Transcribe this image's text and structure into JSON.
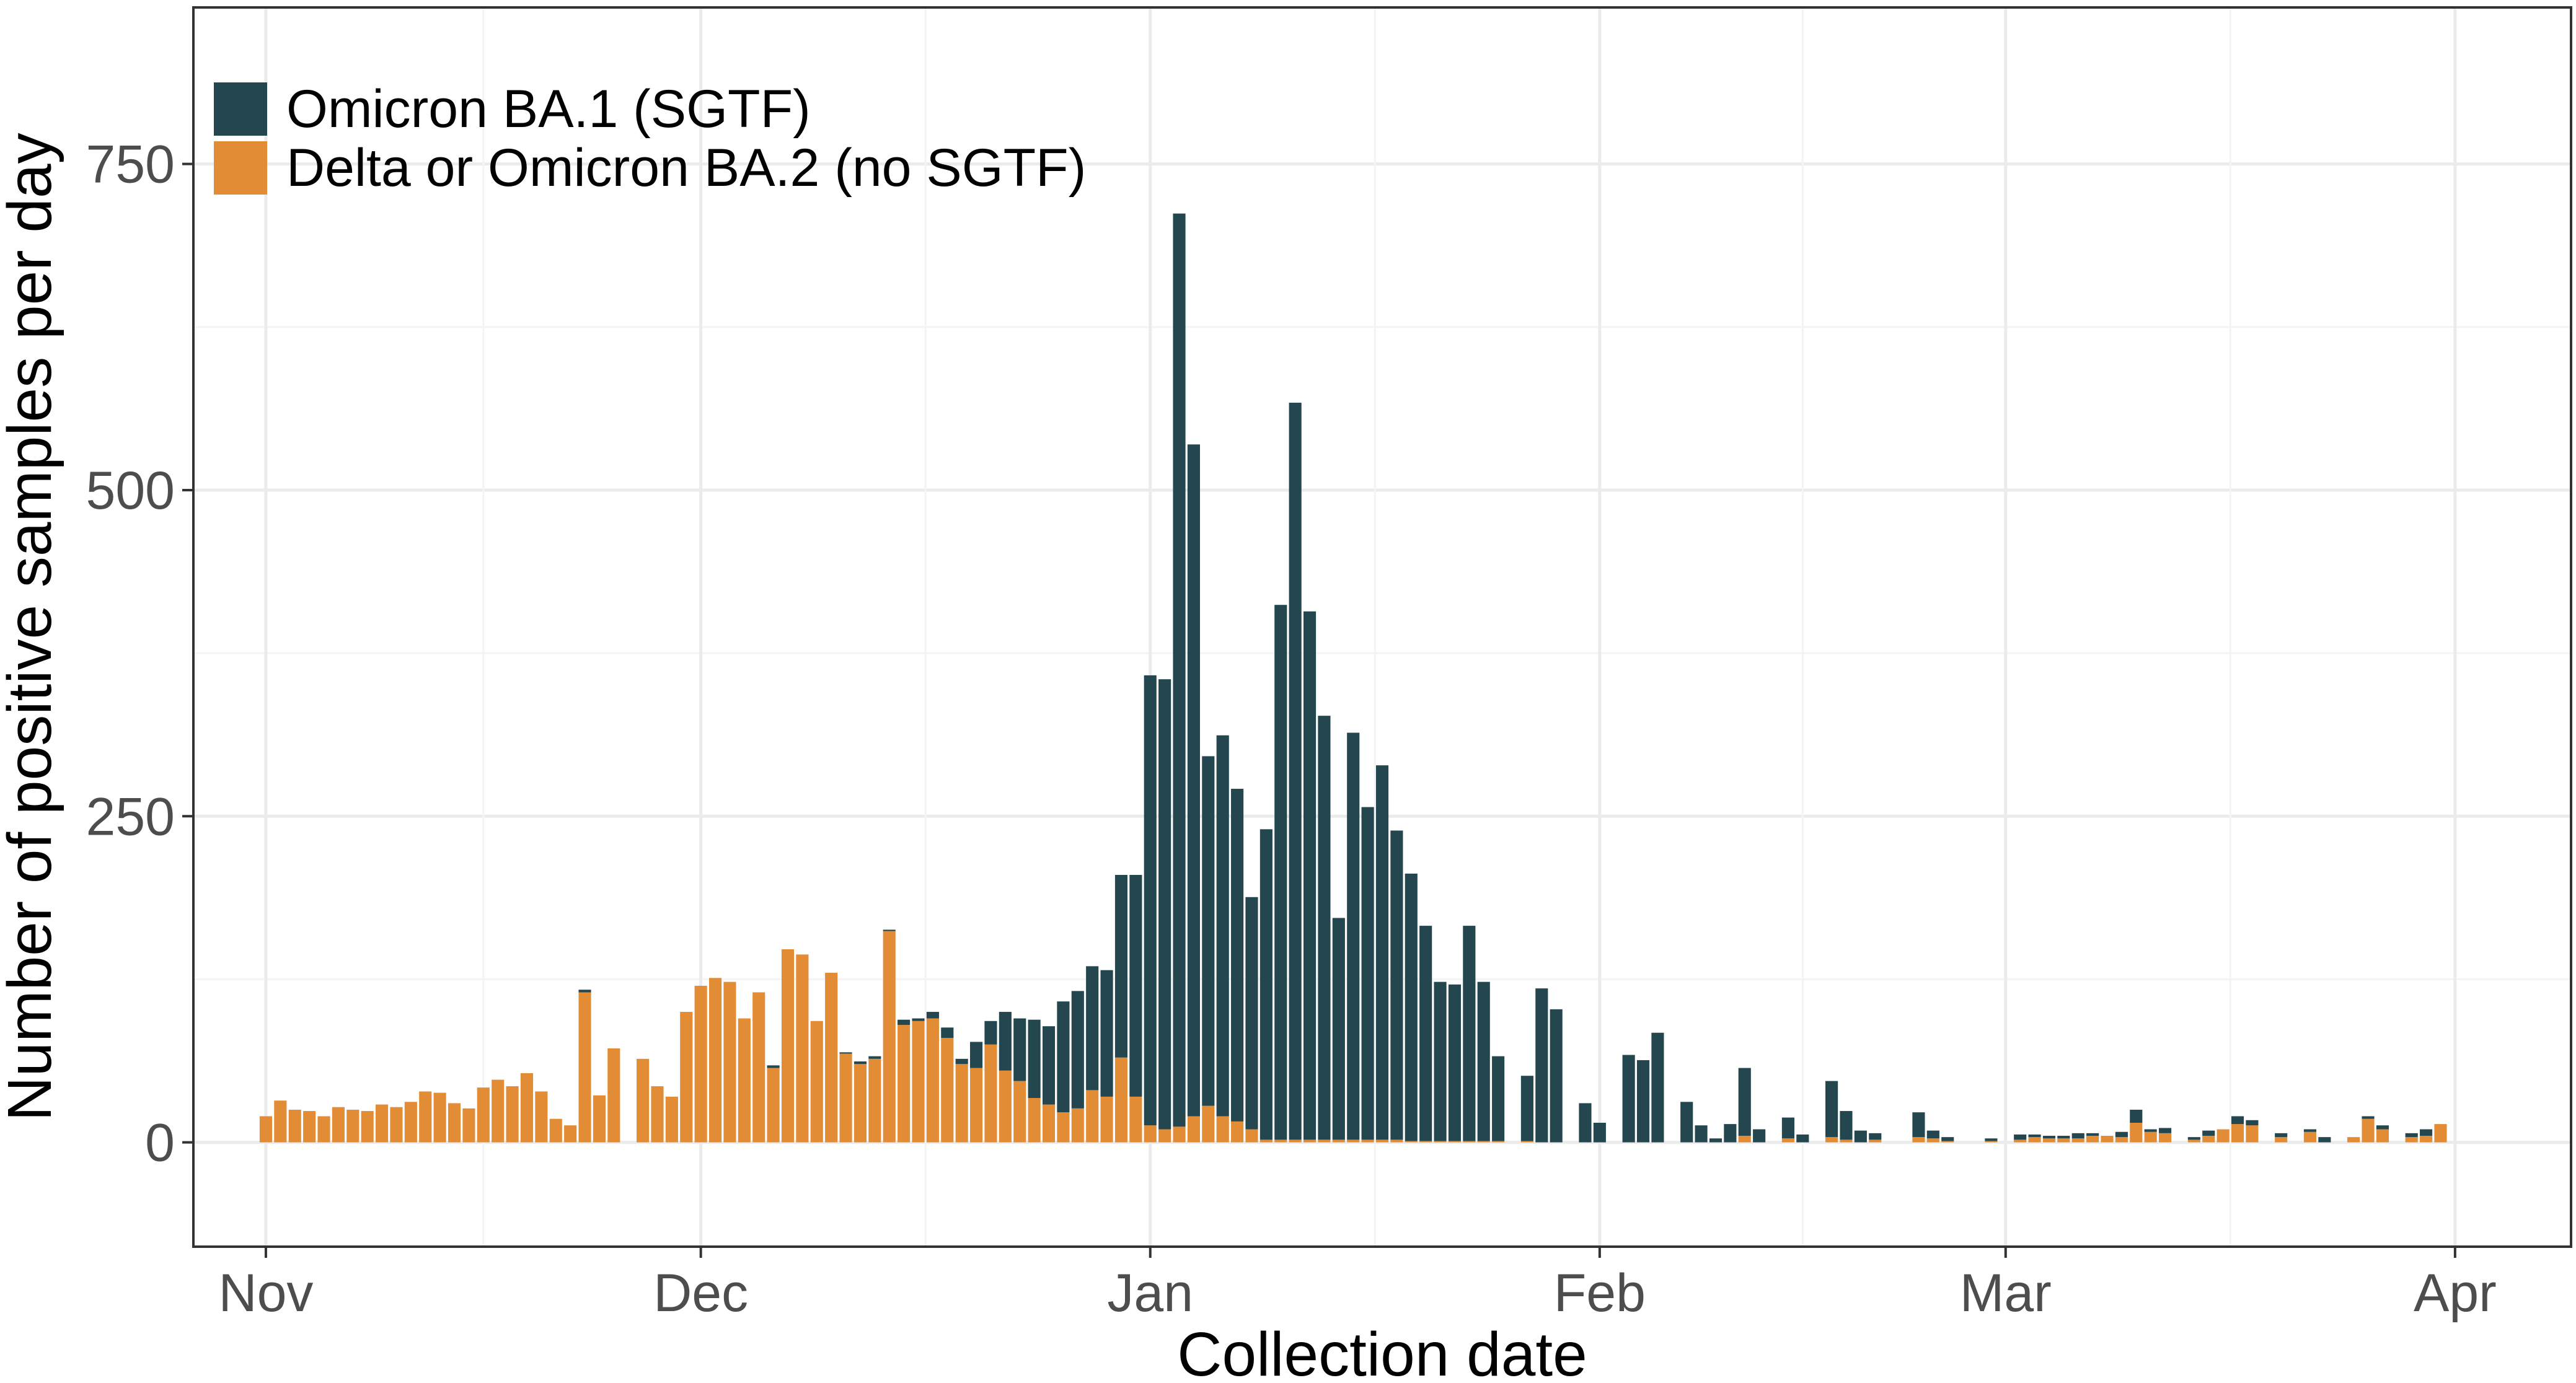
{
  "chart_data": {
    "type": "bar",
    "stacked": true,
    "xlabel": "Collection date",
    "ylabel": "Number of positive samples per day",
    "ylim": [
      -80,
      870
    ],
    "yticks": [
      0,
      250,
      500,
      750
    ],
    "xlim": [
      "2021-10-27",
      "2022-04-09"
    ],
    "xticks": [
      {
        "label": "Nov",
        "date": "2021-11-01"
      },
      {
        "label": "Dec",
        "date": "2021-12-01"
      },
      {
        "label": "Jan",
        "date": "2022-01-01"
      },
      {
        "label": "Feb",
        "date": "2022-02-01"
      },
      {
        "label": "Mar",
        "date": "2022-03-01"
      },
      {
        "label": "Apr",
        "date": "2022-04-01"
      }
    ],
    "grid": true,
    "legend_position": "top-left",
    "series": [
      {
        "name": "Omicron BA.1 (SGTF)",
        "color": "#23464f"
      },
      {
        "name": "Delta or Omicron BA.2 (no SGTF)",
        "color": "#e28c35"
      }
    ],
    "dates": [
      "2021-11-01",
      "2021-11-02",
      "2021-11-03",
      "2021-11-04",
      "2021-11-05",
      "2021-11-06",
      "2021-11-07",
      "2021-11-08",
      "2021-11-09",
      "2021-11-10",
      "2021-11-11",
      "2021-11-12",
      "2021-11-13",
      "2021-11-14",
      "2021-11-15",
      "2021-11-16",
      "2021-11-17",
      "2021-11-18",
      "2021-11-19",
      "2021-11-20",
      "2021-11-21",
      "2021-11-22",
      "2021-11-23",
      "2021-11-24",
      "2021-11-25",
      "2021-11-26",
      "2021-11-27",
      "2021-11-28",
      "2021-11-29",
      "2021-11-30",
      "2021-12-01",
      "2021-12-02",
      "2021-12-03",
      "2021-12-04",
      "2021-12-05",
      "2021-12-06",
      "2021-12-07",
      "2021-12-08",
      "2021-12-09",
      "2021-12-10",
      "2021-12-11",
      "2021-12-12",
      "2021-12-13",
      "2021-12-14",
      "2021-12-15",
      "2021-12-16",
      "2021-12-17",
      "2021-12-18",
      "2021-12-19",
      "2021-12-20",
      "2021-12-21",
      "2021-12-22",
      "2021-12-23",
      "2021-12-24",
      "2021-12-25",
      "2021-12-26",
      "2021-12-27",
      "2021-12-28",
      "2021-12-29",
      "2021-12-30",
      "2021-12-31",
      "2022-01-01",
      "2022-01-02",
      "2022-01-03",
      "2022-01-04",
      "2022-01-05",
      "2022-01-06",
      "2022-01-07",
      "2022-01-08",
      "2022-01-09",
      "2022-01-10",
      "2022-01-11",
      "2022-01-12",
      "2022-01-13",
      "2022-01-14",
      "2022-01-15",
      "2022-01-16",
      "2022-01-17",
      "2022-01-18",
      "2022-01-19",
      "2022-01-20",
      "2022-01-21",
      "2022-01-22",
      "2022-01-23",
      "2022-01-24",
      "2022-01-25",
      "2022-01-26",
      "2022-01-27",
      "2022-01-28",
      "2022-01-29",
      "2022-01-30",
      "2022-01-31",
      "2022-02-01",
      "2022-02-02",
      "2022-02-03",
      "2022-02-04",
      "2022-02-05",
      "2022-02-06",
      "2022-02-07",
      "2022-02-08",
      "2022-02-09",
      "2022-02-10",
      "2022-02-11",
      "2022-02-12",
      "2022-02-13",
      "2022-02-14",
      "2022-02-15",
      "2022-02-16",
      "2022-02-17",
      "2022-02-18",
      "2022-02-19",
      "2022-02-20",
      "2022-02-21",
      "2022-02-22",
      "2022-02-23",
      "2022-02-24",
      "2022-02-25",
      "2022-02-26",
      "2022-02-27",
      "2022-02-28",
      "2022-03-01",
      "2022-03-02",
      "2022-03-03",
      "2022-03-04",
      "2022-03-05",
      "2022-03-06",
      "2022-03-07",
      "2022-03-08",
      "2022-03-09",
      "2022-03-10",
      "2022-03-11",
      "2022-03-12",
      "2022-03-13",
      "2022-03-14",
      "2022-03-15",
      "2022-03-16",
      "2022-03-17",
      "2022-03-18",
      "2022-03-19",
      "2022-03-20",
      "2022-03-21",
      "2022-03-22",
      "2022-03-23",
      "2022-03-24",
      "2022-03-25",
      "2022-03-26",
      "2022-03-27",
      "2022-03-28",
      "2022-03-29",
      "2022-03-30",
      "2022-03-31",
      "2022-04-01",
      "2022-04-02",
      "2022-04-03",
      "2022-04-04"
    ],
    "omicron_ba1": [
      0,
      0,
      0,
      0,
      0,
      0,
      0,
      0,
      0,
      0,
      0,
      0,
      0,
      0,
      0,
      0,
      0,
      0,
      0,
      0,
      0,
      0,
      2,
      0,
      0,
      0,
      0,
      0,
      0,
      0,
      0,
      0,
      0,
      0,
      0,
      2,
      0,
      0,
      0,
      0,
      1,
      2,
      2,
      1,
      4,
      2,
      5,
      8,
      4,
      20,
      18,
      45,
      48,
      60,
      60,
      85,
      90,
      95,
      97,
      140,
      170,
      345,
      345,
      700,
      515,
      268,
      292,
      255,
      178,
      238,
      410,
      565,
      405,
      325,
      170,
      312,
      255,
      287,
      237,
      205,
      165,
      122,
      120,
      165,
      122,
      65,
      0,
      50,
      118,
      102,
      0,
      30,
      15,
      0,
      67,
      63,
      84,
      0,
      31,
      13,
      3,
      14,
      52,
      10,
      0,
      16,
      6,
      0,
      43,
      22,
      9,
      5,
      0,
      0,
      19,
      6,
      3,
      0,
      0,
      2,
      0,
      4,
      2,
      2,
      2,
      4,
      2,
      0,
      4,
      10,
      2,
      4,
      0,
      2,
      4,
      0,
      6,
      4,
      0,
      3,
      0,
      2,
      4,
      0,
      0,
      2,
      3,
      0,
      3,
      5,
      0,
      0,
      0,
      0,
      0,
      0,
      0,
      0,
      0,
      0
    ],
    "delta_or_ba2": [
      20,
      32,
      25,
      24,
      20,
      27,
      25,
      24,
      29,
      27,
      31,
      39,
      38,
      30,
      26,
      42,
      48,
      43,
      53,
      39,
      18,
      13,
      115,
      36,
      72,
      0,
      64,
      43,
      35,
      100,
      120,
      126,
      123,
      95,
      115,
      57,
      148,
      144,
      93,
      130,
      68,
      60,
      64,
      162,
      90,
      93,
      95,
      80,
      60,
      57,
      75,
      55,
      47,
      34,
      29,
      23,
      26,
      40,
      35,
      65,
      35,
      13,
      10,
      12,
      20,
      28,
      20,
      16,
      10,
      2,
      2,
      2,
      2,
      2,
      2,
      2,
      2,
      2,
      2,
      1,
      1,
      1,
      1,
      1,
      1,
      1,
      0,
      1,
      0,
      0,
      0,
      0,
      0,
      0,
      0,
      0,
      0,
      0,
      0,
      0,
      0,
      0,
      5,
      0,
      0,
      3,
      0,
      0,
      4,
      2,
      0,
      2,
      0,
      0,
      4,
      3,
      1,
      0,
      0,
      1,
      0,
      2,
      4,
      3,
      3,
      3,
      5,
      5,
      4,
      15,
      8,
      7,
      0,
      2,
      5,
      10,
      14,
      13,
      0,
      4,
      0,
      8,
      0,
      0,
      4,
      18,
      10,
      0,
      4,
      5,
      14,
      0,
      0,
      0,
      0,
      0,
      0,
      0,
      0,
      12
    ]
  }
}
